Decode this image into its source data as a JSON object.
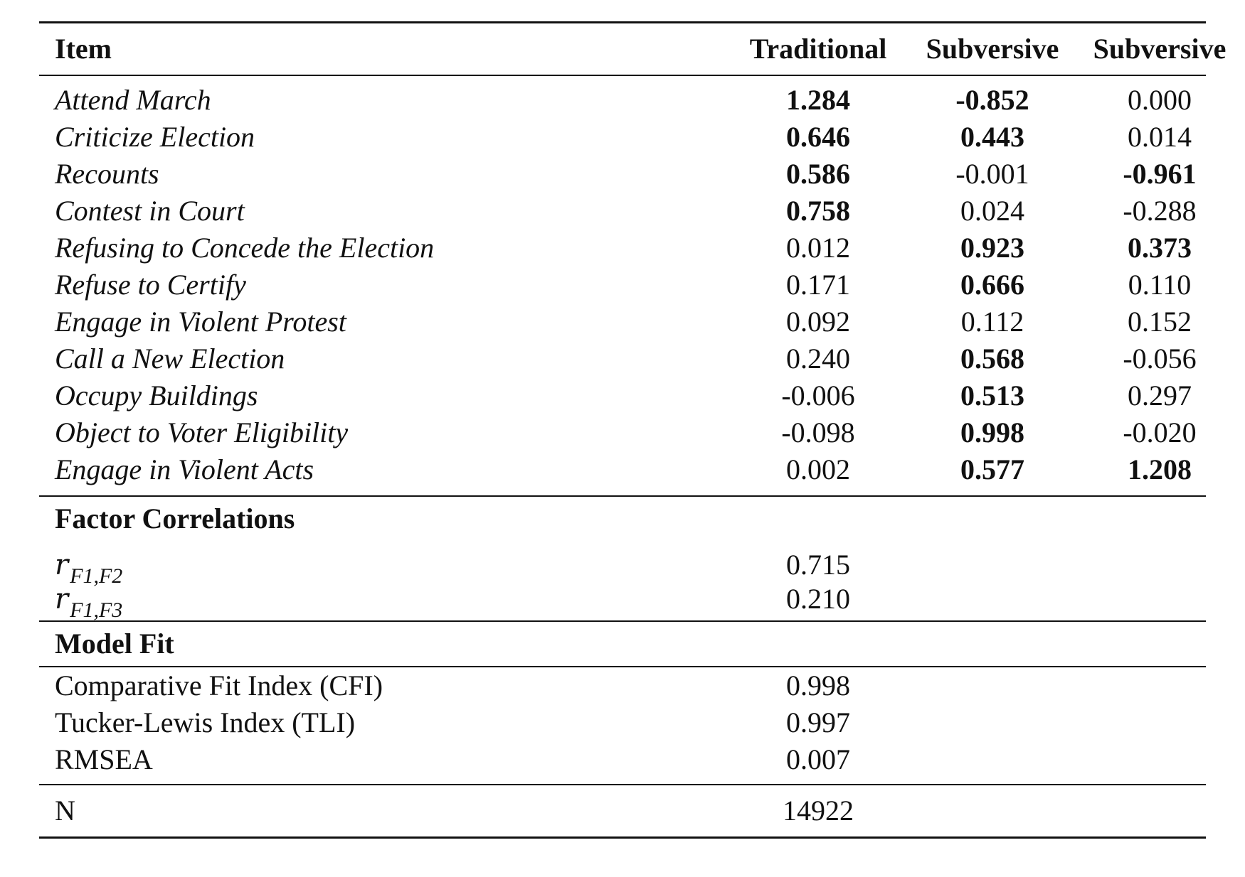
{
  "header": {
    "item": "Item",
    "col1": "Traditional",
    "col2": "Subversive",
    "col3": "Subversive"
  },
  "items": [
    {
      "label": "Attend March",
      "v1": "1.284",
      "v2": "-0.852",
      "v3": "0.000",
      "b1": true,
      "b2": true,
      "b3": false
    },
    {
      "label": "Criticize Election",
      "v1": "0.646",
      "v2": "0.443",
      "v3": "0.014",
      "b1": true,
      "b2": true,
      "b3": false
    },
    {
      "label": "Recounts",
      "v1": "0.586",
      "v2": "-0.001",
      "v3": "-0.961",
      "b1": true,
      "b2": false,
      "b3": true
    },
    {
      "label": "Contest in Court",
      "v1": "0.758",
      "v2": "0.024",
      "v3": "-0.288",
      "b1": true,
      "b2": false,
      "b3": false
    },
    {
      "label": "Refusing to Concede the Election",
      "v1": "0.012",
      "v2": "0.923",
      "v3": "0.373",
      "b1": false,
      "b2": true,
      "b3": true
    },
    {
      "label": "Refuse to Certify",
      "v1": "0.171",
      "v2": "0.666",
      "v3": "0.110",
      "b1": false,
      "b2": true,
      "b3": false
    },
    {
      "label": "Engage in Violent Protest",
      "v1": "0.092",
      "v2": "0.112",
      "v3": "0.152",
      "b1": false,
      "b2": false,
      "b3": false
    },
    {
      "label": "Call a New Election",
      "v1": "0.240",
      "v2": "0.568",
      "v3": "-0.056",
      "b1": false,
      "b2": true,
      "b3": false
    },
    {
      "label": "Occupy Buildings",
      "v1": "-0.006",
      "v2": "0.513",
      "v3": "0.297",
      "b1": false,
      "b2": true,
      "b3": false
    },
    {
      "label": "Object to Voter Eligibility",
      "v1": "-0.098",
      "v2": "0.998",
      "v3": "-0.020",
      "b1": false,
      "b2": true,
      "b3": false
    },
    {
      "label": "Engage in Violent Acts",
      "v1": "0.002",
      "v2": "0.577",
      "v3": "1.208",
      "b1": false,
      "b2": true,
      "b3": true
    }
  ],
  "correlations": {
    "title": "Factor Correlations",
    "rows": [
      {
        "symbol": "r",
        "sub": "F1,F2",
        "value": "0.715"
      },
      {
        "symbol": "r",
        "sub": "F1,F3",
        "value": "0.210"
      }
    ]
  },
  "fit": {
    "title": "Model Fit",
    "rows": [
      {
        "label": "Comparative Fit Index (CFI)",
        "value": "0.998"
      },
      {
        "label": "Tucker-Lewis Index (TLI)",
        "value": "0.997"
      },
      {
        "label": "RMSEA",
        "value": "0.007"
      }
    ]
  },
  "n": {
    "label": "N",
    "value": "14922"
  }
}
